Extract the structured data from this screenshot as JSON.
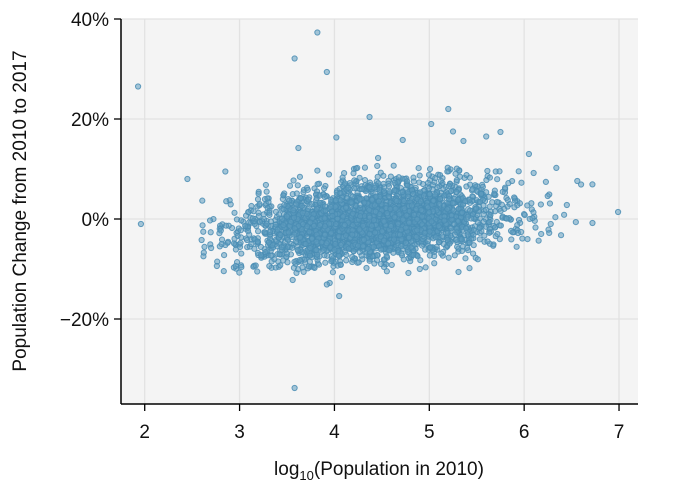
{
  "chart_data": {
    "type": "scatter",
    "title": "",
    "xlabel": {
      "prefix": "log",
      "subscript": "10",
      "suffix": "(Population in 2010)"
    },
    "ylabel": "Population Change from 2010 to 2017",
    "xlim": [
      1.75,
      7.2
    ],
    "ylim": [
      -37,
      40
    ],
    "x_ticks": [
      2,
      3,
      4,
      5,
      6,
      7
    ],
    "x_tick_labels": [
      "2",
      "3",
      "4",
      "5",
      "6",
      "7"
    ],
    "y_ticks": [
      40,
      20,
      0,
      -20
    ],
    "y_tick_labels": [
      "40%",
      "20%",
      "0%",
      "−20%"
    ],
    "grid": true,
    "legend": null,
    "colors": {
      "point_fill": "#5e9cbf",
      "point_stroke": "#4a8db4",
      "plot_background": "#f4f4f4",
      "grid": "#e2e2e2",
      "axis": "#000000"
    },
    "point_cloud": {
      "description_count": 3142,
      "x_mean": 4.4,
      "x_sd": 0.66,
      "x_min": 2.6,
      "x_max": 6.8,
      "y_at_x3": -3,
      "y_at_x6": 2,
      "y_sd": 4.2
    },
    "outliers": [
      {
        "x": 1.93,
        "y": 26.5
      },
      {
        "x": 1.96,
        "y": -1.0
      },
      {
        "x": 2.45,
        "y": 8.0
      },
      {
        "x": 3.58,
        "y": 32.1
      },
      {
        "x": 3.82,
        "y": 37.3
      },
      {
        "x": 3.92,
        "y": 29.4
      },
      {
        "x": 3.62,
        "y": 14.2
      },
      {
        "x": 3.58,
        "y": -33.8
      },
      {
        "x": 4.05,
        "y": -15.4
      },
      {
        "x": 3.95,
        "y": -12.8
      },
      {
        "x": 3.92,
        "y": -13.1
      },
      {
        "x": 4.37,
        "y": 20.4
      },
      {
        "x": 5.2,
        "y": 22.0
      },
      {
        "x": 5.02,
        "y": 19.0
      },
      {
        "x": 4.02,
        "y": 16.3
      },
      {
        "x": 5.25,
        "y": 17.5
      },
      {
        "x": 5.75,
        "y": 17.4
      },
      {
        "x": 5.6,
        "y": 16.5
      },
      {
        "x": 4.72,
        "y": 15.8
      },
      {
        "x": 5.36,
        "y": 15.6
      },
      {
        "x": 4.46,
        "y": 12.2
      },
      {
        "x": 3.56,
        "y": -12.2
      },
      {
        "x": 6.99,
        "y": 1.4
      },
      {
        "x": 6.72,
        "y": -0.8
      },
      {
        "x": 6.56,
        "y": 7.6
      },
      {
        "x": 6.6,
        "y": 6.9
      },
      {
        "x": 6.45,
        "y": 2.8
      },
      {
        "x": 2.6,
        "y": -4.2
      },
      {
        "x": 2.7,
        "y": -5.8
      },
      {
        "x": 2.94,
        "y": -9.7
      },
      {
        "x": 3.17,
        "y": -9.3
      },
      {
        "x": 2.96,
        "y": -9.4
      },
      {
        "x": 2.85,
        "y": 9.5
      },
      {
        "x": 6.28,
        "y": -1.0
      },
      {
        "x": 6.05,
        "y": 13.0
      },
      {
        "x": 6.1,
        "y": 9.2
      },
      {
        "x": 4.08,
        "y": -11.6
      },
      {
        "x": 4.9,
        "y": -10.0
      }
    ]
  }
}
